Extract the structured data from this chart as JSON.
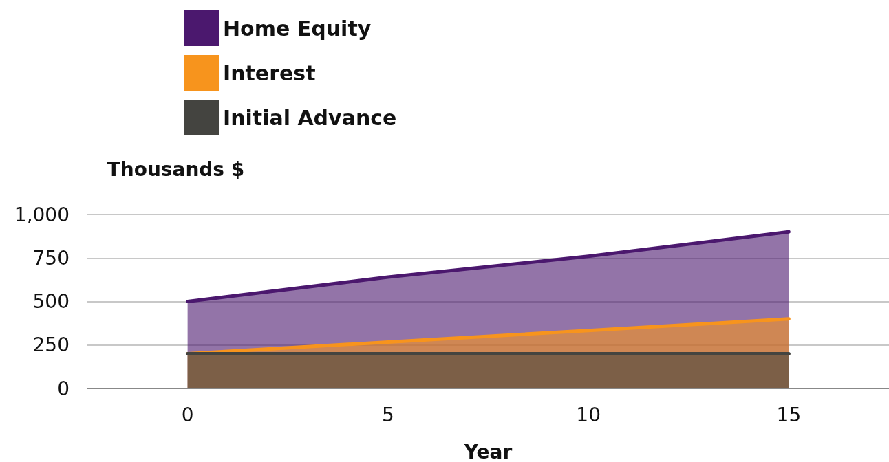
{
  "chart_data": {
    "type": "area",
    "xlabel": "Year",
    "ylabel": "Thousands $",
    "x": [
      0,
      5,
      10,
      15
    ],
    "series": [
      {
        "name": "Home Equity",
        "color": "#4b186e",
        "values": [
          500,
          640,
          760,
          900
        ]
      },
      {
        "name": "Interest",
        "color": "#f7941d",
        "values": [
          200,
          267,
          333,
          400
        ]
      },
      {
        "name": "Initial Advance",
        "color": "#444440",
        "values": [
          200,
          200,
          200,
          200
        ]
      }
    ],
    "xlim": [
      -2.5,
      17.5
    ],
    "xticks": [
      0,
      5,
      10,
      15
    ],
    "ylim": [
      0,
      1000
    ],
    "yticks": [
      0,
      250,
      500,
      750,
      {
        "value": 1000,
        "label": "1,000"
      }
    ],
    "grid": "y",
    "legend": "top",
    "marker": "none",
    "line_style": "solid"
  }
}
